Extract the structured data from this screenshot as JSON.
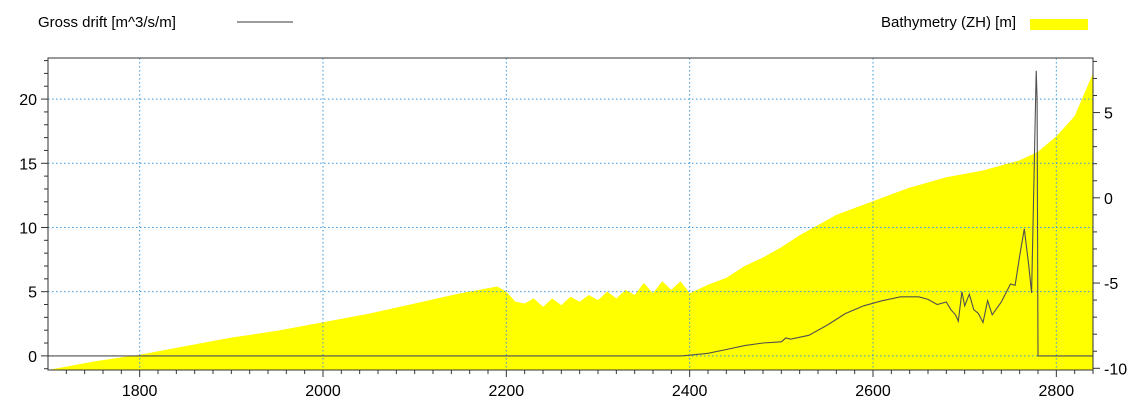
{
  "chart_data": {
    "type": "area",
    "xlim": [
      1700,
      2840
    ],
    "x_ticks": [
      1800,
      2000,
      2200,
      2400,
      2600,
      2800
    ],
    "y_left_lim": [
      -1.1,
      23.2
    ],
    "y_left_ticks": [
      0,
      5,
      10,
      15,
      20
    ],
    "y_right_lim": [
      -10.1,
      8.2
    ],
    "y_right_ticks": [
      -10,
      -5,
      0,
      5
    ],
    "grid": true,
    "legend": [
      {
        "name": "Gross drift [m^3/s/m]",
        "position": "top-left",
        "color": "#606060"
      },
      {
        "name": "Bathymetry (ZH) [m]",
        "position": "top-right",
        "color": "#ffff00"
      }
    ],
    "series": [
      {
        "name": "Bathymetry (ZH) [m]",
        "axis": "right",
        "type": "area",
        "color": "#ffff00",
        "x": [
          1700,
          1750,
          1800,
          1850,
          1900,
          1950,
          2000,
          2050,
          2100,
          2150,
          2190,
          2200,
          2210,
          2220,
          2230,
          2240,
          2250,
          2260,
          2270,
          2280,
          2290,
          2300,
          2310,
          2320,
          2330,
          2340,
          2350,
          2360,
          2370,
          2380,
          2390,
          2400,
          2420,
          2440,
          2460,
          2480,
          2500,
          2520,
          2540,
          2560,
          2580,
          2600,
          2620,
          2640,
          2660,
          2680,
          2700,
          2720,
          2740,
          2760,
          2780,
          2800,
          2820,
          2840
        ],
        "y": [
          -10.1,
          -9.6,
          -9.2,
          -8.7,
          -8.2,
          -7.8,
          -7.3,
          -6.8,
          -6.2,
          -5.6,
          -5.2,
          -5.5,
          -6.1,
          -6.2,
          -5.9,
          -6.4,
          -5.9,
          -6.3,
          -5.8,
          -6.1,
          -5.7,
          -6.0,
          -5.5,
          -5.9,
          -5.4,
          -5.7,
          -5.0,
          -5.6,
          -4.9,
          -5.4,
          -4.9,
          -5.6,
          -5.1,
          -4.7,
          -4.0,
          -3.5,
          -2.9,
          -2.2,
          -1.6,
          -1.0,
          -0.6,
          -0.2,
          0.2,
          0.6,
          0.9,
          1.2,
          1.4,
          1.6,
          1.9,
          2.2,
          2.7,
          3.6,
          4.8,
          7.3
        ]
      },
      {
        "name": "Gross drift [m^3/s/m]",
        "axis": "left",
        "type": "line",
        "color": "#606060",
        "x": [
          1700,
          2390,
          2400,
          2420,
          2440,
          2460,
          2480,
          2500,
          2505,
          2510,
          2530,
          2550,
          2570,
          2590,
          2610,
          2630,
          2650,
          2660,
          2670,
          2680,
          2685,
          2690,
          2693,
          2697,
          2700,
          2705,
          2710,
          2715,
          2720,
          2725,
          2730,
          2740,
          2750,
          2755,
          2760,
          2765,
          2770,
          2773,
          2776,
          2778,
          2779,
          2780,
          2790,
          2840
        ],
        "y": [
          0,
          0,
          0.05,
          0.2,
          0.5,
          0.8,
          1.0,
          1.1,
          1.4,
          1.3,
          1.6,
          2.4,
          3.3,
          3.9,
          4.3,
          4.6,
          4.6,
          4.4,
          4.0,
          4.2,
          3.6,
          3.2,
          2.7,
          5.0,
          3.9,
          4.8,
          3.6,
          3.3,
          2.6,
          4.3,
          3.2,
          4.2,
          5.6,
          5.5,
          7.8,
          9.9,
          7.0,
          4.9,
          15.0,
          22.2,
          20.0,
          0,
          0,
          0
        ]
      }
    ]
  }
}
